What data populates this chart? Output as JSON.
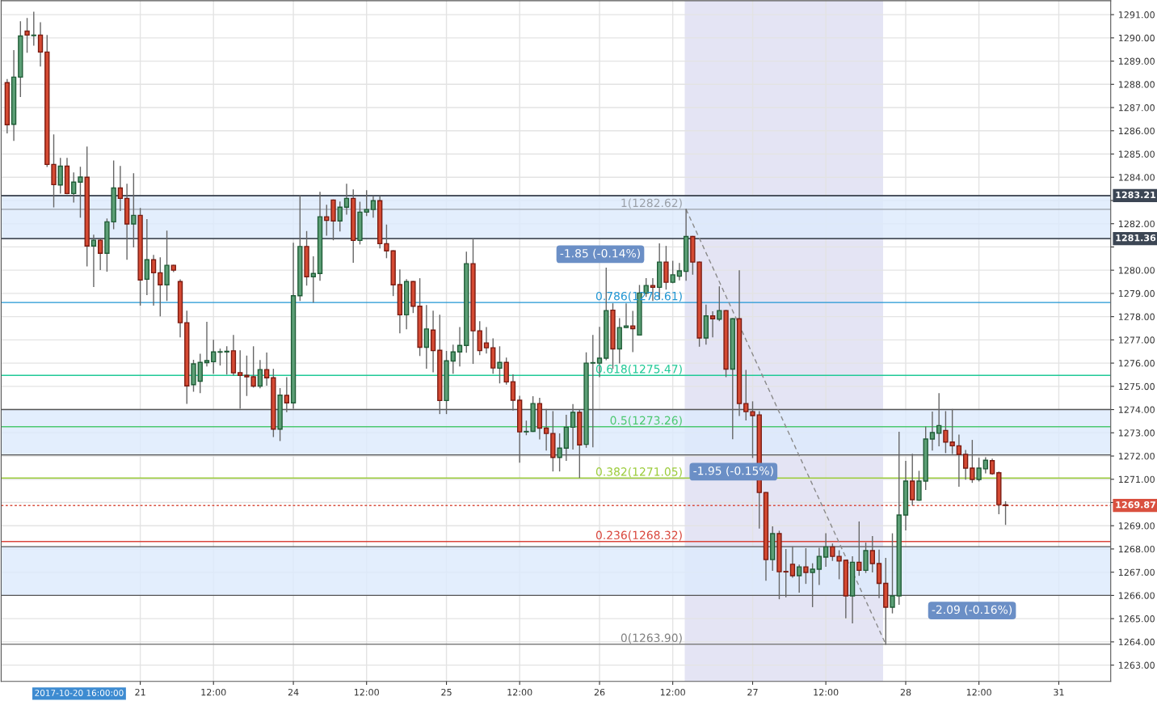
{
  "chart_data": {
    "type": "candlestick",
    "categories": [
      null,
      null,
      null,
      null,
      null,
      null,
      null,
      null,
      null,
      null,
      null,
      null,
      null,
      null,
      null,
      null,
      null,
      null,
      null,
      null,
      "21",
      null,
      null,
      null,
      null,
      null,
      null,
      null,
      null,
      null,
      null,
      "12:00",
      null,
      null,
      null,
      null,
      null,
      null,
      null,
      null,
      null,
      null,
      null,
      "24",
      null,
      null,
      null,
      null,
      null,
      null,
      null,
      null,
      null,
      null,
      "12:00",
      null,
      null,
      null,
      null,
      null,
      null,
      null,
      null,
      null,
      null,
      null,
      "25",
      null,
      null,
      null,
      null,
      null,
      null,
      null,
      null,
      null,
      null,
      "12:00",
      null,
      null,
      null,
      null,
      null,
      null,
      null,
      null,
      null,
      null,
      null,
      "26",
      null,
      null,
      null,
      null,
      null,
      null,
      null,
      null,
      null,
      null,
      "12:00",
      null,
      null,
      null,
      null,
      null,
      null,
      null,
      null,
      null,
      null,
      null,
      "27",
      null,
      null,
      null,
      null,
      null,
      null,
      null,
      null,
      null,
      null,
      "12:00",
      null,
      null,
      null,
      null,
      null,
      null,
      null,
      null,
      null,
      null,
      null,
      "28",
      null,
      null,
      null,
      null,
      null,
      null,
      null,
      null,
      null,
      null,
      "12:00",
      null,
      null,
      null,
      null,
      null,
      null,
      null,
      null,
      null,
      null,
      null,
      "31",
      null,
      null,
      null,
      null,
      null,
      null,
      null
    ],
    "ohlc": [
      [
        1288.07,
        1288.2,
        1285.91,
        1286.26
      ],
      [
        1286.28,
        1289.45,
        1285.59,
        1288.31
      ],
      [
        1288.31,
        1290.69,
        1287.48,
        1290.08
      ],
      [
        1290.29,
        1290.83,
        1289.38,
        1290.12
      ],
      [
        1290.1,
        1291.1,
        1289.69,
        1290.12
      ],
      [
        1290.12,
        1290.65,
        1288.79,
        1289.39
      ],
      [
        1289.39,
        1290.1,
        1284.47,
        1284.55
      ],
      [
        1284.55,
        1285.82,
        1282.73,
        1283.68
      ],
      [
        1283.67,
        1284.81,
        1283.32,
        1284.48
      ],
      [
        1284.48,
        1284.81,
        1283.29,
        1283.3
      ],
      [
        1283.3,
        1284.18,
        1282.94,
        1283.79
      ],
      [
        1283.79,
        1284.43,
        1282.28,
        1284.01
      ],
      [
        1284.0,
        1285.3,
        1280.19,
        1281.04
      ],
      [
        1281.04,
        1281.5,
        1279.3,
        1281.29
      ],
      [
        1281.29,
        1281.33,
        1280.03,
        1280.73
      ],
      [
        1280.73,
        1282.2,
        1279.96,
        1282.08
      ],
      [
        1282.08,
        1284.7,
        1281.79,
        1283.54
      ],
      [
        1283.54,
        1284.46,
        1282.57,
        1283.09
      ],
      [
        1283.09,
        1283.7,
        1280.47,
        1281.99
      ],
      [
        1281.99,
        1284.15,
        1281.0,
        1282.36
      ],
      [
        1282.36,
        1282.65,
        1278.5,
        1279.58
      ],
      [
        1279.61,
        1282.17,
        1278.95,
        1280.45
      ],
      [
        1280.45,
        1280.63,
        1278.5,
        1279.89
      ],
      [
        1279.89,
        1280.53,
        1278.04,
        1279.37
      ],
      [
        1279.37,
        1281.68,
        1278.7,
        1280.21
      ],
      [
        1280.21,
        1280.21,
        1279.94,
        1280.0
      ],
      [
        1279.51,
        1279.58,
        1277.13,
        1277.74
      ],
      [
        1277.74,
        1278.23,
        1274.27,
        1275.02
      ],
      [
        1275.07,
        1276.12,
        1274.79,
        1275.97
      ],
      [
        1275.22,
        1276.38,
        1274.73,
        1276.03
      ],
      [
        1276.02,
        1277.75,
        1275.88,
        1276.11
      ],
      [
        1276.06,
        1276.98,
        1275.57,
        1276.48
      ],
      [
        1276.47,
        1276.6,
        1275.92,
        1276.48
      ],
      [
        1276.48,
        1276.7,
        1275.53,
        1276.51
      ],
      [
        1276.53,
        1277.19,
        1275.49,
        1275.58
      ],
      [
        1275.59,
        1276.53,
        1274.06,
        1275.47
      ],
      [
        1275.47,
        1276.3,
        1274.61,
        1275.41
      ],
      [
        1275.41,
        1276.7,
        1274.97,
        1275.01
      ],
      [
        1275.01,
        1276.11,
        1274.94,
        1275.72
      ],
      [
        1275.72,
        1276.43,
        1275.05,
        1275.37
      ],
      [
        1275.37,
        1275.73,
        1272.84,
        1273.16
      ],
      [
        1273.16,
        1274.9,
        1272.67,
        1274.62
      ],
      [
        1274.61,
        1275.37,
        1273.91,
        1274.29
      ],
      [
        1274.29,
        1281.16,
        1274.06,
        1278.9
      ],
      [
        1278.9,
        1283.2,
        1278.7,
        1281.02
      ],
      [
        1281.02,
        1281.66,
        1279.36,
        1279.72
      ],
      [
        1279.72,
        1280.57,
        1278.63,
        1279.86
      ],
      [
        1279.86,
        1283.35,
        1279.57,
        1282.3
      ],
      [
        1282.3,
        1282.79,
        1281.51,
        1282.14
      ],
      [
        1283.02,
        1283.02,
        1281.31,
        1282.12
      ],
      [
        1282.12,
        1282.93,
        1281.69,
        1282.71
      ],
      [
        1282.71,
        1283.7,
        1282.41,
        1283.09
      ],
      [
        1283.09,
        1283.45,
        1280.34,
        1281.28
      ],
      [
        1281.28,
        1282.92,
        1281.13,
        1282.5
      ],
      [
        1282.5,
        1283.42,
        1282.35,
        1282.61
      ],
      [
        1282.61,
        1283.17,
        1282.28,
        1282.99
      ],
      [
        1282.99,
        1283.17,
        1280.96,
        1281.14
      ],
      [
        1281.14,
        1281.94,
        1280.54,
        1280.83
      ],
      [
        1280.83,
        1280.83,
        1278.91,
        1279.37
      ],
      [
        1279.38,
        1280.01,
        1277.31,
        1278.08
      ],
      [
        1278.08,
        1279.59,
        1277.48,
        1279.51
      ],
      [
        1279.51,
        1279.51,
        1278.18,
        1278.45
      ],
      [
        1278.45,
        1279.63,
        1276.33,
        1276.68
      ],
      [
        1276.68,
        1278.48,
        1275.78,
        1277.47
      ],
      [
        1277.42,
        1278.23,
        1275.63,
        1276.54
      ],
      [
        1276.55,
        1278.06,
        1273.83,
        1274.39
      ],
      [
        1274.39,
        1276.5,
        1273.83,
        1276.1
      ],
      [
        1276.09,
        1276.77,
        1275.57,
        1276.48
      ],
      [
        1276.48,
        1277.53,
        1275.88,
        1276.76
      ],
      [
        1276.76,
        1280.77,
        1276.47,
        1280.28
      ],
      [
        1280.28,
        1281.34,
        1275.99,
        1277.39
      ],
      [
        1277.39,
        1277.78,
        1276.37,
        1276.54
      ],
      [
        1276.87,
        1277.53,
        1276.44,
        1276.66
      ],
      [
        1276.66,
        1277.04,
        1275.57,
        1275.79
      ],
      [
        1275.78,
        1276.7,
        1275.15,
        1276.03
      ],
      [
        1276.03,
        1276.21,
        1275.1,
        1275.19
      ],
      [
        1275.2,
        1275.49,
        1273.98,
        1274.4
      ],
      [
        1274.4,
        1274.57,
        1271.74,
        1273.04
      ],
      [
        1273.04,
        1273.5,
        1272.92,
        1273.06
      ],
      [
        1273.06,
        1274.55,
        1273.06,
        1274.26
      ],
      [
        1274.26,
        1274.48,
        1272.74,
        1273.2
      ],
      [
        1273.2,
        1274.0,
        1272.26,
        1272.97
      ],
      [
        1272.97,
        1273.91,
        1271.36,
        1271.94
      ],
      [
        1271.94,
        1272.95,
        1271.36,
        1272.34
      ],
      [
        1272.34,
        1273.75,
        1271.82,
        1273.24
      ],
      [
        1273.24,
        1274.21,
        1272.3,
        1273.88
      ],
      [
        1273.88,
        1273.98,
        1271.08,
        1272.48
      ],
      [
        1272.5,
        1276.44,
        1272.38,
        1276.0
      ],
      [
        1276.0,
        1277.19,
        1272.4,
        1276.0
      ],
      [
        1276.0,
        1277.54,
        1275.42,
        1276.21
      ],
      [
        1276.21,
        1280.09,
        1276.15,
        1278.26
      ],
      [
        1278.28,
        1278.55,
        1275.77,
        1276.61
      ],
      [
        1276.61,
        1277.91,
        1276.01,
        1277.53
      ],
      [
        1277.53,
        1278.55,
        1277.52,
        1277.6
      ],
      [
        1277.6,
        1278.22,
        1276.5,
        1277.48
      ],
      [
        1277.21,
        1279.34,
        1277.21,
        1279.02
      ],
      [
        1279.01,
        1279.63,
        1278.87,
        1279.34
      ],
      [
        1279.34,
        1279.63,
        1278.7,
        1279.26
      ],
      [
        1279.26,
        1281.13,
        1278.76,
        1280.35
      ],
      [
        1280.35,
        1281.02,
        1279.19,
        1279.48
      ],
      [
        1279.48,
        1280.38,
        1279.46,
        1279.8
      ],
      [
        1279.74,
        1280.29,
        1279.59,
        1279.97
      ],
      [
        1279.95,
        1282.62,
        1279.57,
        1281.45
      ],
      [
        1281.45,
        1281.45,
        1279.83,
        1280.35
      ],
      [
        1280.35,
        1280.35,
        1276.73,
        1277.08
      ],
      [
        1277.08,
        1278.49,
        1276.82,
        1278.03
      ],
      [
        1278.03,
        1278.21,
        1277.13,
        1277.91
      ],
      [
        1277.89,
        1279.28,
        1277.83,
        1278.26
      ],
      [
        1278.26,
        1278.26,
        1275.42,
        1275.74
      ],
      [
        1275.74,
        1277.91,
        1272.75,
        1277.91
      ],
      [
        1277.91,
        1279.97,
        1273.75,
        1274.26
      ],
      [
        1274.26,
        1275.68,
        1273.56,
        1273.91
      ],
      [
        1273.91,
        1274.33,
        1271.94,
        1273.74
      ],
      [
        1273.77,
        1273.91,
        1268.9,
        1270.43
      ],
      [
        1270.43,
        1270.43,
        1266.66,
        1267.54
      ],
      [
        1267.54,
        1268.95,
        1267.08,
        1268.66
      ],
      [
        1268.66,
        1268.76,
        1265.86,
        1267.02
      ],
      [
        1267.03,
        1267.97,
        1265.94,
        1267.01
      ],
      [
        1267.34,
        1268.09,
        1266.79,
        1266.85
      ],
      [
        1266.85,
        1267.3,
        1266.14,
        1267.23
      ],
      [
        1267.23,
        1268.01,
        1266.52,
        1266.99
      ],
      [
        1266.99,
        1267.36,
        1265.52,
        1267.13
      ],
      [
        1267.13,
        1268.03,
        1266.47,
        1267.68
      ],
      [
        1267.65,
        1268.65,
        1267.26,
        1268.09
      ],
      [
        1268.09,
        1268.21,
        1267.51,
        1267.68
      ],
      [
        1267.68,
        1267.92,
        1266.72,
        1267.48
      ],
      [
        1267.51,
        1267.51,
        1265.04,
        1265.98
      ],
      [
        1265.98,
        1267.66,
        1264.82,
        1267.43
      ],
      [
        1267.43,
        1269.16,
        1266.87,
        1267.08
      ],
      [
        1267.08,
        1268.25,
        1266.99,
        1267.93
      ],
      [
        1267.93,
        1268.53,
        1267.01,
        1267.37
      ],
      [
        1267.37,
        1267.95,
        1265.91,
        1266.52
      ],
      [
        1266.52,
        1267.59,
        1263.9,
        1265.49
      ],
      [
        1265.49,
        1268.65,
        1265.25,
        1265.98
      ],
      [
        1265.98,
        1273.02,
        1265.62,
        1269.46
      ],
      [
        1269.46,
        1271.77,
        1268.82,
        1270.92
      ],
      [
        1270.92,
        1272.07,
        1269.89,
        1270.12
      ],
      [
        1270.1,
        1271.34,
        1270.1,
        1270.92
      ],
      [
        1270.92,
        1273.25,
        1270.56,
        1272.73
      ],
      [
        1272.73,
        1273.89,
        1272.26,
        1273.01
      ],
      [
        1272.98,
        1274.68,
        1272.44,
        1273.31
      ],
      [
        1273.1,
        1273.91,
        1272.15,
        1272.6
      ],
      [
        1272.6,
        1274.0,
        1272.11,
        1272.44
      ],
      [
        1272.44,
        1272.9,
        1270.7,
        1272.07
      ],
      [
        1272.07,
        1272.24,
        1271.01,
        1271.48
      ],
      [
        1271.48,
        1272.67,
        1270.87,
        1270.99
      ],
      [
        1270.99,
        1271.9,
        1270.93,
        1271.48
      ],
      [
        1271.45,
        1271.92,
        1271.28,
        1271.82
      ],
      [
        1271.8,
        1271.86,
        1271.22,
        1271.24
      ],
      [
        1271.28,
        1271.31,
        1269.52,
        1269.91
      ],
      [
        1269.9,
        1270.03,
        1269.06,
        1269.87
      ],
      null,
      null,
      null,
      null,
      null,
      null,
      null,
      null,
      null,
      null,
      null,
      null,
      null,
      null,
      null
    ],
    "series": [
      {
        "type": "line",
        "color": "#8a8a8a",
        "line_style": "dashed",
        "values": [
          null,
          null,
          null,
          null,
          null,
          null,
          null,
          null,
          null,
          null,
          null,
          null,
          null,
          null,
          null,
          null,
          null,
          null,
          null,
          null,
          null,
          null,
          null,
          null,
          null,
          null,
          null,
          null,
          null,
          null,
          null,
          null,
          null,
          null,
          null,
          null,
          null,
          null,
          null,
          null,
          null,
          null,
          null,
          null,
          null,
          null,
          null,
          null,
          null,
          null,
          null,
          null,
          null,
          null,
          null,
          null,
          null,
          null,
          null,
          null,
          null,
          null,
          null,
          null,
          null,
          null,
          null,
          null,
          null,
          null,
          null,
          null,
          null,
          null,
          null,
          null,
          null,
          null,
          null,
          null,
          null,
          null,
          null,
          null,
          null,
          null,
          null,
          null,
          null,
          null,
          null,
          null,
          null,
          null,
          null,
          null,
          null,
          null,
          null,
          null,
          null,
          null,
          1282.62,
          null,
          null,
          null,
          null,
          null,
          null,
          null,
          null,
          null,
          null,
          null,
          null,
          null,
          null,
          null,
          null,
          null,
          null,
          null,
          null,
          null,
          null,
          null,
          null,
          null,
          null,
          null,
          null,
          null,
          1263.9,
          null,
          null,
          null,
          null,
          null,
          null,
          null,
          null,
          null,
          null,
          null,
          null,
          null,
          null,
          null,
          null,
          null,
          null,
          null,
          null,
          null,
          null,
          null,
          null,
          null,
          null,
          null,
          null,
          null,
          null,
          null,
          null,
          null
        ]
      }
    ],
    "ylim": [
      1262.3,
      1291.6
    ],
    "yticks": [
      {
        "value": 1263,
        "label": "1263.00"
      },
      {
        "value": 1264,
        "label": "1264.00"
      },
      {
        "value": 1265,
        "label": "1265.00"
      },
      {
        "value": 1266,
        "label": "1266.00"
      },
      {
        "value": 1267,
        "label": "1267.00"
      },
      {
        "value": 1268,
        "label": "1268.00"
      },
      {
        "value": 1269,
        "label": "1269.00"
      },
      {
        "value": 1270,
        "label": null
      },
      {
        "value": 1271,
        "label": "1271.00"
      },
      {
        "value": 1272,
        "label": "1272.00"
      },
      {
        "value": 1273,
        "label": "1273.00"
      },
      {
        "value": 1274,
        "label": "1274.00"
      },
      {
        "value": 1275,
        "label": "1275.00"
      },
      {
        "value": 1276,
        "label": "1276.00"
      },
      {
        "value": 1277,
        "label": "1277.00"
      },
      {
        "value": 1278,
        "label": "1278.00"
      },
      {
        "value": 1279,
        "label": "1279.00"
      },
      {
        "value": 1280,
        "label": "1280.00"
      },
      {
        "value": 1281,
        "label": null
      },
      {
        "value": 1282,
        "label": "1282.00"
      },
      {
        "value": 1283,
        "label": null
      },
      {
        "value": 1284,
        "label": "1284.00"
      },
      {
        "value": 1285,
        "label": "1285.00"
      },
      {
        "value": 1286,
        "label": "1286.00"
      },
      {
        "value": 1287,
        "label": "1287.00"
      },
      {
        "value": 1288,
        "label": "1288.00"
      },
      {
        "value": 1289,
        "label": "1289.00"
      },
      {
        "value": 1290,
        "label": "1290.00"
      },
      {
        "value": 1291,
        "label": "1291.00"
      }
    ],
    "bands": [
      {
        "axis": "y",
        "from": 1281.36,
        "to": 1283.21,
        "color": "#dceafc"
      },
      {
        "axis": "y",
        "from": 1272.05,
        "to": 1274.0,
        "color": "#dceafc"
      },
      {
        "axis": "y",
        "from": 1266.0,
        "to": 1268.1,
        "color": "#dceafc"
      }
    ],
    "ref_lines": [
      {
        "axis": "y",
        "value": 1283.21,
        "label": "1283.21",
        "color": "#3c4654",
        "line_style": "solid"
      },
      {
        "axis": "y",
        "value": 1281.36,
        "label": "1281.36",
        "color": "#3c4654",
        "line_style": "solid"
      },
      {
        "axis": "y",
        "value": 1269.87,
        "label": "1269.87",
        "color": "#d9503f",
        "line_style": "dotted"
      },
      {
        "axis": "y",
        "value": 1282.62,
        "color": "#9aa0a8",
        "line_style": "solid"
      },
      {
        "axis": "y",
        "value": 1278.61,
        "color": "#2196d3",
        "line_style": "solid"
      },
      {
        "axis": "y",
        "value": 1275.47,
        "color": "#20c997",
        "line_style": "solid"
      },
      {
        "axis": "y",
        "value": 1273.26,
        "color": "#4cc870",
        "line_style": "solid"
      },
      {
        "axis": "y",
        "value": 1271.05,
        "color": "#9ccc3c",
        "line_style": "solid"
      },
      {
        "axis": "y",
        "value": 1268.32,
        "color": "#d9463c",
        "line_style": "solid"
      },
      {
        "axis": "y",
        "value": 1263.9,
        "color": "#808080",
        "line_style": "solid"
      }
    ],
    "annotations": [
      {
        "text": "1(1282.62)",
        "y": 1282.62
      },
      {
        "text": "0.786(1278.61)",
        "y": 1278.61
      },
      {
        "text": "0.618(1275.47)",
        "y": 1275.47
      },
      {
        "text": "0.5(1273.26)",
        "y": 1273.26
      },
      {
        "text": "0.382(1271.05)",
        "y": 1271.05
      },
      {
        "text": "0.236(1268.32)",
        "y": 1268.32
      },
      {
        "text": "0(1263.90)",
        "y": 1263.9
      },
      "-1.85 (-0.14%)",
      "-1.95 (-0.15%)",
      "-2.09 (-0.16%)",
      "2017-10-20 16:00:00"
    ],
    "grid": true,
    "legend": false
  }
}
